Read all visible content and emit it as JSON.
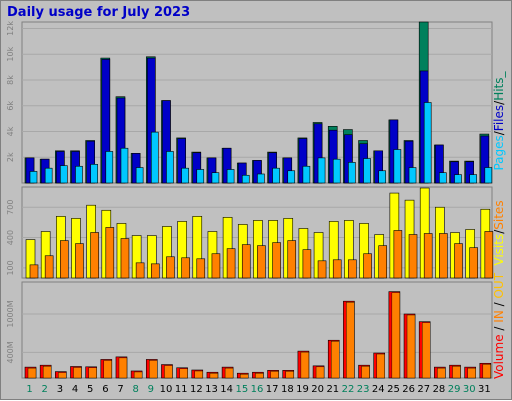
{
  "title": "Daily usage for July 2023",
  "colors": {
    "hits": "#00805c",
    "files": "#0000c8",
    "pages": "#00c8ff",
    "visits": "#ffff00",
    "sites": "#ff8000",
    "volume": "#ff0000",
    "volume_in": "#ff8000",
    "volume_out": "#ffc000",
    "weekend_label": "#00805c",
    "weekday_label": "#000000"
  },
  "side_labels": {
    "panel1": [
      {
        "text": "Pages",
        "color": "#00c8ff"
      },
      {
        "text": "/",
        "color": "#000000"
      },
      {
        "text": "Files",
        "color": "#0000c8"
      },
      {
        "text": "/",
        "color": "#000000"
      },
      {
        "text": "Hits_",
        "color": "#00805c"
      }
    ],
    "panel2": [
      {
        "text": "Visits",
        "color": "#ffff00"
      },
      {
        "text": "/",
        "color": "#000000"
      },
      {
        "text": "Sites",
        "color": "#ff8000"
      }
    ],
    "panel3": [
      {
        "text": "Volume",
        "color": "#ff0000"
      },
      {
        "text": "  /  ",
        "color": "#000000"
      },
      {
        "text": "IN",
        "color": "#ff8000"
      },
      {
        "text": " / ",
        "color": "#000000"
      },
      {
        "text": "OUT",
        "color": "#ffc000"
      }
    ]
  },
  "chart_data": {
    "type": "bar",
    "title": "Daily usage for July 2023",
    "categories": [
      "1",
      "2",
      "3",
      "4",
      "5",
      "6",
      "7",
      "8",
      "9",
      "10",
      "11",
      "12",
      "13",
      "14",
      "15",
      "16",
      "17",
      "18",
      "19",
      "20",
      "21",
      "22",
      "23",
      "24",
      "25",
      "26",
      "27",
      "28",
      "29",
      "30",
      "31"
    ],
    "weekend_days": [
      "1",
      "2",
      "8",
      "9",
      "15",
      "16",
      "22",
      "23",
      "29",
      "30"
    ],
    "panels": [
      {
        "name": "hits-files-pages",
        "ylim": [
          0,
          12500
        ],
        "yticks": [
          2000,
          4000,
          6000,
          8000,
          10000,
          12000
        ],
        "ytick_labels": [
          "2k",
          "4k",
          "6k",
          "8k",
          "10k",
          "12k"
        ],
        "series": [
          {
            "name": "Hits",
            "values": [
              1950,
              1850,
              2500,
              2500,
              3300,
              9700,
              6700,
              2300,
              9800,
              6400,
              3500,
              2400,
              1950,
              2700,
              1550,
              1750,
              2400,
              1950,
              3500,
              4700,
              4400,
              4150,
              3300,
              2500,
              4900,
              3300,
              12500,
              2950,
              1700,
              1700,
              3800
            ]
          },
          {
            "name": "Files",
            "values": [
              1950,
              1850,
              2450,
              2450,
              3250,
              9600,
              6600,
              2300,
              9700,
              6400,
              3450,
              2350,
              1950,
              2700,
              1550,
              1750,
              2350,
              1950,
              3450,
              4600,
              4100,
              3750,
              3050,
              2500,
              4900,
              3250,
              8700,
              2950,
              1650,
              1650,
              3650
            ]
          },
          {
            "name": "Pages",
            "values": [
              900,
              1150,
              1350,
              1300,
              1450,
              2450,
              2700,
              1200,
              3950,
              2450,
              1150,
              1050,
              800,
              1050,
              600,
              700,
              1150,
              950,
              1300,
              1950,
              1850,
              1600,
              1900,
              950,
              2600,
              1200,
              6250,
              800,
              650,
              650,
              1200
            ]
          }
        ]
      },
      {
        "name": "visits-sites",
        "ylim": [
          0,
          900
        ],
        "yticks": [
          100,
          400,
          700
        ],
        "ytick_labels": [
          "100",
          "400",
          "700"
        ],
        "series": [
          {
            "name": "Visits",
            "values": [
              380,
              460,
              610,
              590,
              720,
              670,
              540,
              420,
              420,
              510,
              560,
              610,
              460,
              600,
              530,
              570,
              570,
              590,
              490,
              450,
              560,
              570,
              540,
              430,
              840,
              770,
              890,
              700,
              450,
              480,
              680
            ]
          },
          {
            "name": "Sites",
            "values": [
              130,
              220,
              370,
              340,
              450,
              500,
              390,
              150,
              140,
              210,
              200,
              190,
              240,
              290,
              330,
              320,
              350,
              370,
              280,
              170,
              180,
              180,
              240,
              320,
              470,
              430,
              440,
              440,
              340,
              300,
              460
            ]
          }
        ]
      },
      {
        "name": "volume",
        "ylim": [
          0,
          1500
        ],
        "yticks": [
          400,
          1000
        ],
        "ytick_labels": [
          "400M",
          "1000M"
        ],
        "series": [
          {
            "name": "Volume",
            "values": [
              170,
              200,
              100,
              180,
              175,
              290,
              330,
              110,
              290,
              210,
              160,
              125,
              90,
              170,
              75,
              90,
              120,
              120,
              420,
              190,
              590,
              1200,
              200,
              390,
              1350,
              1000,
              880,
              170,
              200,
              170,
              230
            ]
          }
        ]
      }
    ]
  }
}
